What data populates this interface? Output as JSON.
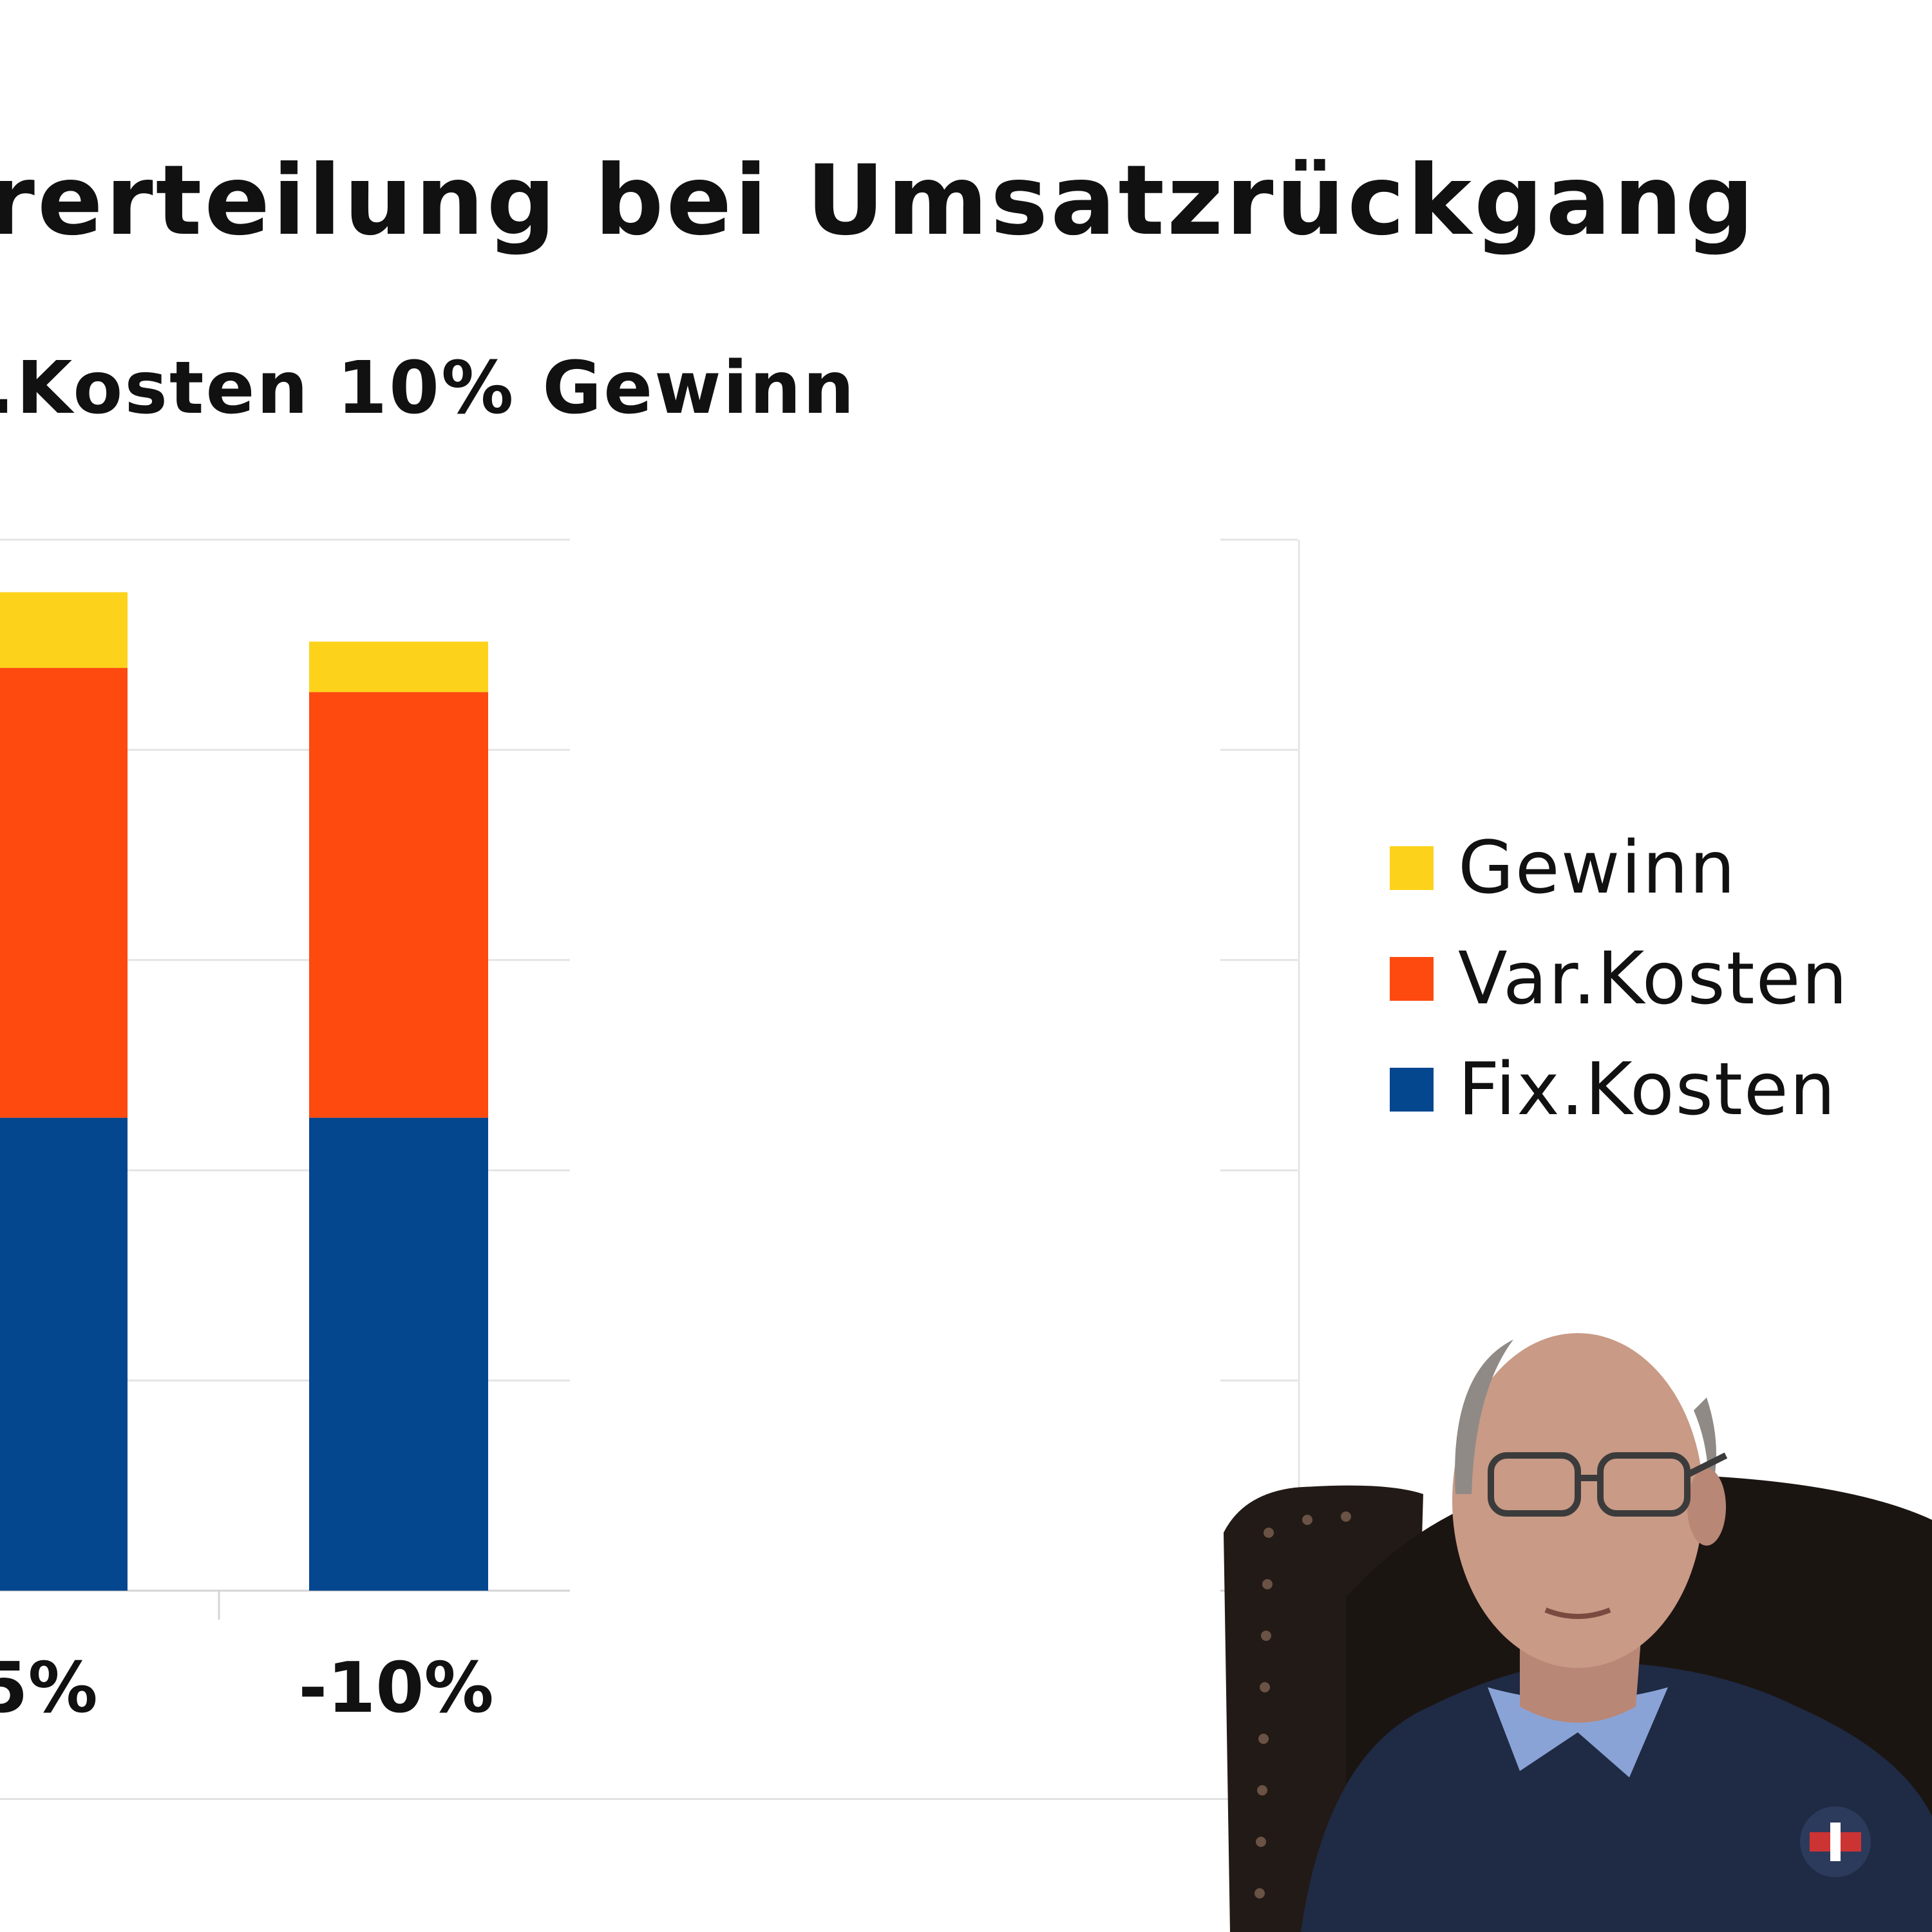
{
  "slide": {
    "title": "rerteilung bei Umsatzrückgang",
    "subtitle": ".Kosten 10% Gewinn"
  },
  "chart_data": {
    "type": "bar",
    "stacked": true,
    "categories": [
      "5%",
      "-10%"
    ],
    "series": [
      {
        "name": "Fix.Kosten",
        "color": "#05478f",
        "values": [
          45,
          45
        ]
      },
      {
        "name": "Var.Kosten",
        "color": "#fe4a0e",
        "values": [
          42.8,
          40.5
        ]
      },
      {
        "name": "Gewinn",
        "color": "#fdd21b",
        "values": [
          7.2,
          4.8
        ]
      }
    ],
    "ylim": [
      0,
      100
    ],
    "grid": true,
    "legend": "right"
  },
  "legend": {
    "items": [
      {
        "label": "Gewinn",
        "color": "#fdd21b"
      },
      {
        "label": "Var.Kosten",
        "color": "#fe4a0e"
      },
      {
        "label": "Fix.Kosten",
        "color": "#05478f"
      }
    ]
  },
  "video_overlay": {
    "icon": "presenter-webcam-icon",
    "colors": {
      "jacket": "#1f2a44",
      "shirt": "#8aa3d6",
      "chair": "#221a16",
      "skin": "#c99a86"
    }
  }
}
